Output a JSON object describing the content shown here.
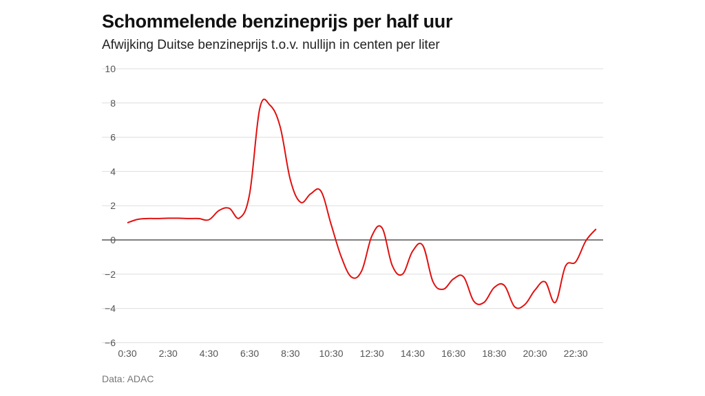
{
  "chart_data": {
    "type": "line",
    "title": "Schommelende benzineprijs per half uur",
    "subtitle": "Afwijking Duitse benzineprijs t.o.v. nullijn in centen per liter",
    "source": "Data: ADAC",
    "xlabel": "",
    "ylabel": "",
    "ylim": [
      -6,
      10
    ],
    "yticks": [
      "−6",
      "−4",
      "−2",
      "0",
      "2",
      "4",
      "6",
      "8",
      "10"
    ],
    "ytick_values": [
      -6,
      -4,
      -2,
      0,
      2,
      4,
      6,
      8,
      10
    ],
    "xticks": [
      "0:30",
      "2:30",
      "4:30",
      "6:30",
      "8:30",
      "10:30",
      "12:30",
      "14:30",
      "16:30",
      "18:30",
      "20:30",
      "22:30"
    ],
    "x": [
      "0:30",
      "1:00",
      "1:30",
      "2:00",
      "2:30",
      "3:00",
      "3:30",
      "4:00",
      "4:30",
      "5:00",
      "5:30",
      "6:00",
      "6:30",
      "7:00",
      "7:30",
      "8:00",
      "8:30",
      "9:00",
      "9:30",
      "10:00",
      "10:30",
      "11:00",
      "11:30",
      "12:00",
      "12:30",
      "13:00",
      "13:30",
      "14:00",
      "14:30",
      "15:00",
      "15:30",
      "16:00",
      "16:30",
      "17:00",
      "17:30",
      "18:00",
      "18:30",
      "19:00",
      "19:30",
      "20:00",
      "20:30",
      "21:00",
      "21:30",
      "22:00",
      "22:30",
      "23:00",
      "23:30"
    ],
    "values": [
      1.0,
      1.2,
      1.25,
      1.25,
      1.27,
      1.27,
      1.25,
      1.25,
      1.18,
      1.72,
      1.85,
      1.28,
      2.7,
      7.7,
      7.87,
      6.6,
      3.5,
      2.2,
      2.7,
      2.85,
      0.9,
      -1.0,
      -2.17,
      -1.8,
      0.24,
      0.7,
      -1.5,
      -2.0,
      -0.65,
      -0.33,
      -2.45,
      -2.88,
      -2.28,
      -2.16,
      -3.58,
      -3.65,
      -2.78,
      -2.66,
      -3.9,
      -3.78,
      -2.93,
      -2.45,
      -3.65,
      -1.53,
      -1.28,
      -0.05,
      0.64
    ],
    "grid": true,
    "zero_line": true,
    "colors": {
      "line": "#e0100f",
      "grid": "#dddddd",
      "zero": "#333333"
    }
  }
}
